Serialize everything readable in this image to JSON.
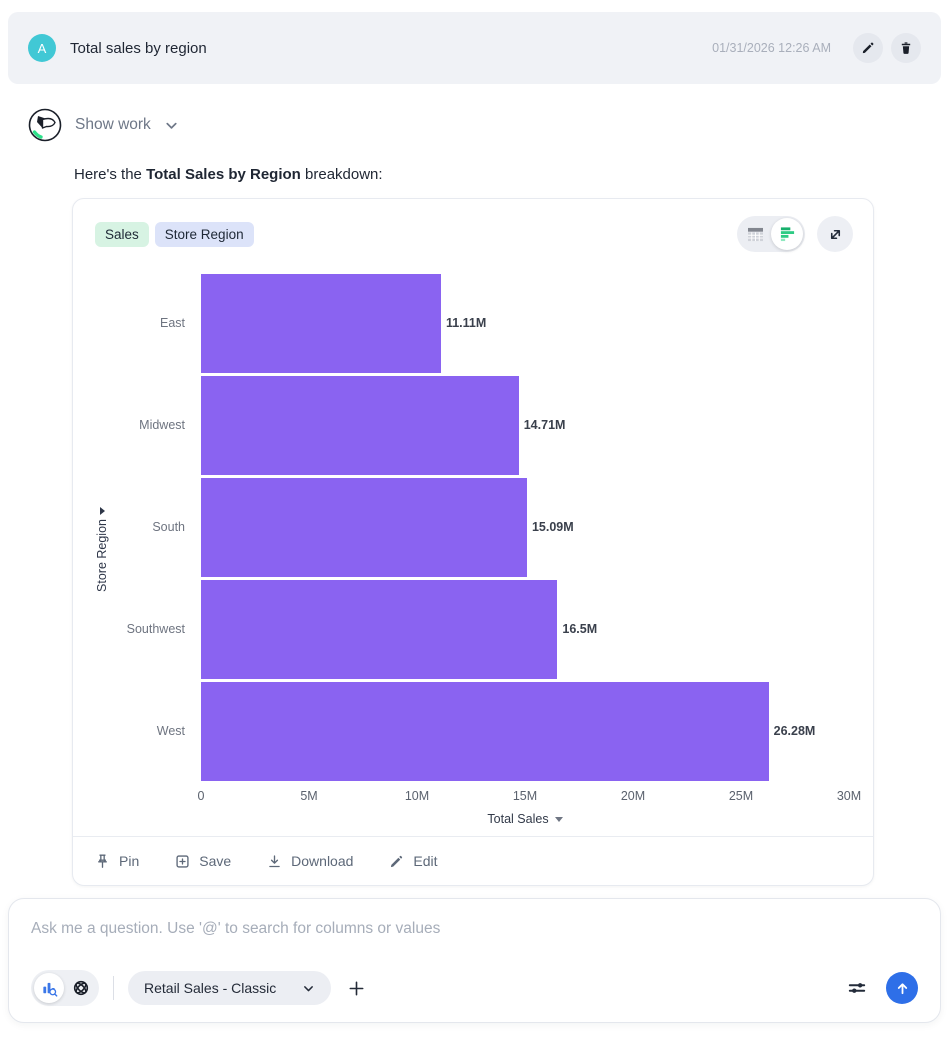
{
  "header": {
    "avatar_letter": "A",
    "title": "Total sales by region",
    "timestamp": "01/31/2026 12:26 AM"
  },
  "assistant": {
    "show_work_label": "Show work",
    "message_prefix": "Here's the ",
    "message_bold": "Total Sales by Region",
    "message_suffix": " breakdown:"
  },
  "chart_card": {
    "tags": [
      {
        "label": "Sales",
        "color": "#d7f3e3"
      },
      {
        "label": "Store Region",
        "color": "#dce3f9"
      }
    ],
    "view_toggle_icons": [
      "table-view-icon",
      "bar-chart-view-icon"
    ],
    "expand_icon": "expand-icon",
    "footer_actions": [
      {
        "label": "Pin",
        "icon": "pin-icon"
      },
      {
        "label": "Save",
        "icon": "save-icon"
      },
      {
        "label": "Download",
        "icon": "download-icon"
      },
      {
        "label": "Edit",
        "icon": "edit-icon"
      }
    ]
  },
  "chart_data": {
    "type": "bar",
    "orientation": "horizontal",
    "categories": [
      "East",
      "Midwest",
      "South",
      "Southwest",
      "West"
    ],
    "values": [
      11110000,
      14710000,
      15090000,
      16500000,
      26280000
    ],
    "value_labels": [
      "11.11M",
      "14.71M",
      "15.09M",
      "16.5M",
      "26.28M"
    ],
    "xlabel": "Total Sales",
    "ylabel": "Store Region",
    "x_ticks": [
      "0",
      "5M",
      "10M",
      "15M",
      "20M",
      "25M",
      "30M"
    ],
    "xlim": [
      0,
      30000000
    ],
    "bar_color": "#8a63f1",
    "grid": false,
    "legend": false
  },
  "composer": {
    "placeholder": "Ask me a question. Use '@' to search for columns or values",
    "datasource_label": "Retail Sales - Classic",
    "mode_icons": [
      "chart-search-icon",
      "ai-knot-icon"
    ],
    "settings_icon": "sliders-icon",
    "send_icon": "arrow-up-icon"
  },
  "colors": {
    "bar_purple": "#8a63f1",
    "accent_blue": "#2e6fe8",
    "accent_green": "#2bc77f",
    "avatar_teal": "#41c8d5",
    "header_bg": "#f0f2f6",
    "tag_green_bg": "#d7f3e3",
    "tag_blue_bg": "#dce3f9"
  }
}
